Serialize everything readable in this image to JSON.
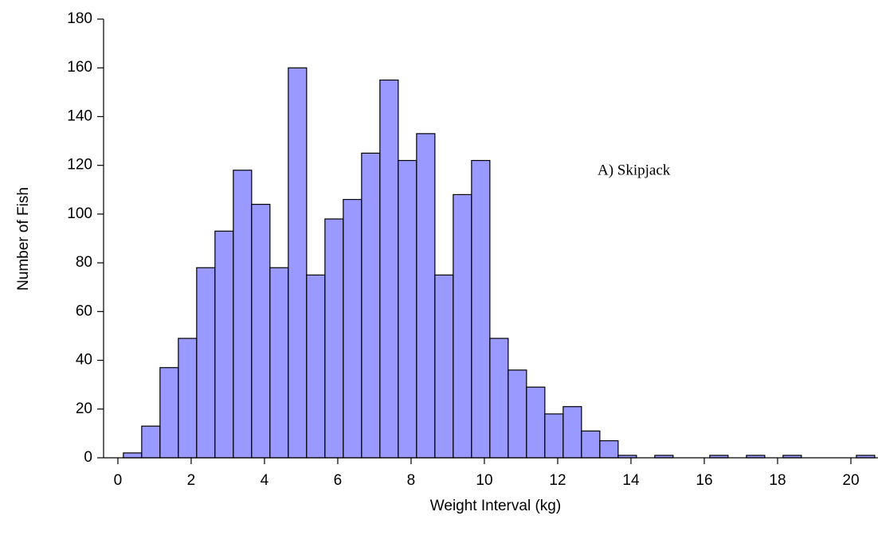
{
  "chart_data": {
    "type": "histogram",
    "xlabel": "Weight Interval (kg)",
    "ylabel": "Number of Fish",
    "annotation": "A) Skipjack",
    "bins": [
      0.15,
      0.65,
      1.15,
      1.65,
      2.15,
      2.65,
      3.15,
      3.65,
      4.15,
      4.65,
      5.15,
      5.65,
      6.15,
      6.65,
      7.15,
      7.65,
      8.15,
      8.65,
      9.15,
      9.65,
      10.15,
      10.65,
      11.15,
      11.65,
      12.15,
      12.65,
      13.15,
      13.65,
      14.15,
      14.65,
      15.15,
      15.65,
      16.15,
      16.65,
      17.15,
      17.65,
      18.15,
      18.65,
      19.15,
      19.65,
      20.15,
      20.65
    ],
    "values": [
      2,
      13,
      37,
      49,
      78,
      93,
      118,
      104,
      78,
      160,
      75,
      98,
      106,
      125,
      155,
      122,
      133,
      75,
      108,
      122,
      49,
      36,
      29,
      18,
      21,
      11,
      7,
      1,
      0,
      1,
      0,
      0,
      1,
      0,
      1,
      0,
      1,
      0,
      0,
      0,
      1
    ],
    "color": "#9999ff",
    "xlim": [
      -0.39,
      20.74
    ],
    "xticks": [
      0,
      2,
      4,
      6,
      8,
      10,
      12,
      14,
      16,
      18,
      20
    ],
    "ylim": [
      0,
      180
    ],
    "yticks": [
      0,
      20,
      40,
      60,
      80,
      100,
      120,
      140,
      160,
      180
    ]
  }
}
